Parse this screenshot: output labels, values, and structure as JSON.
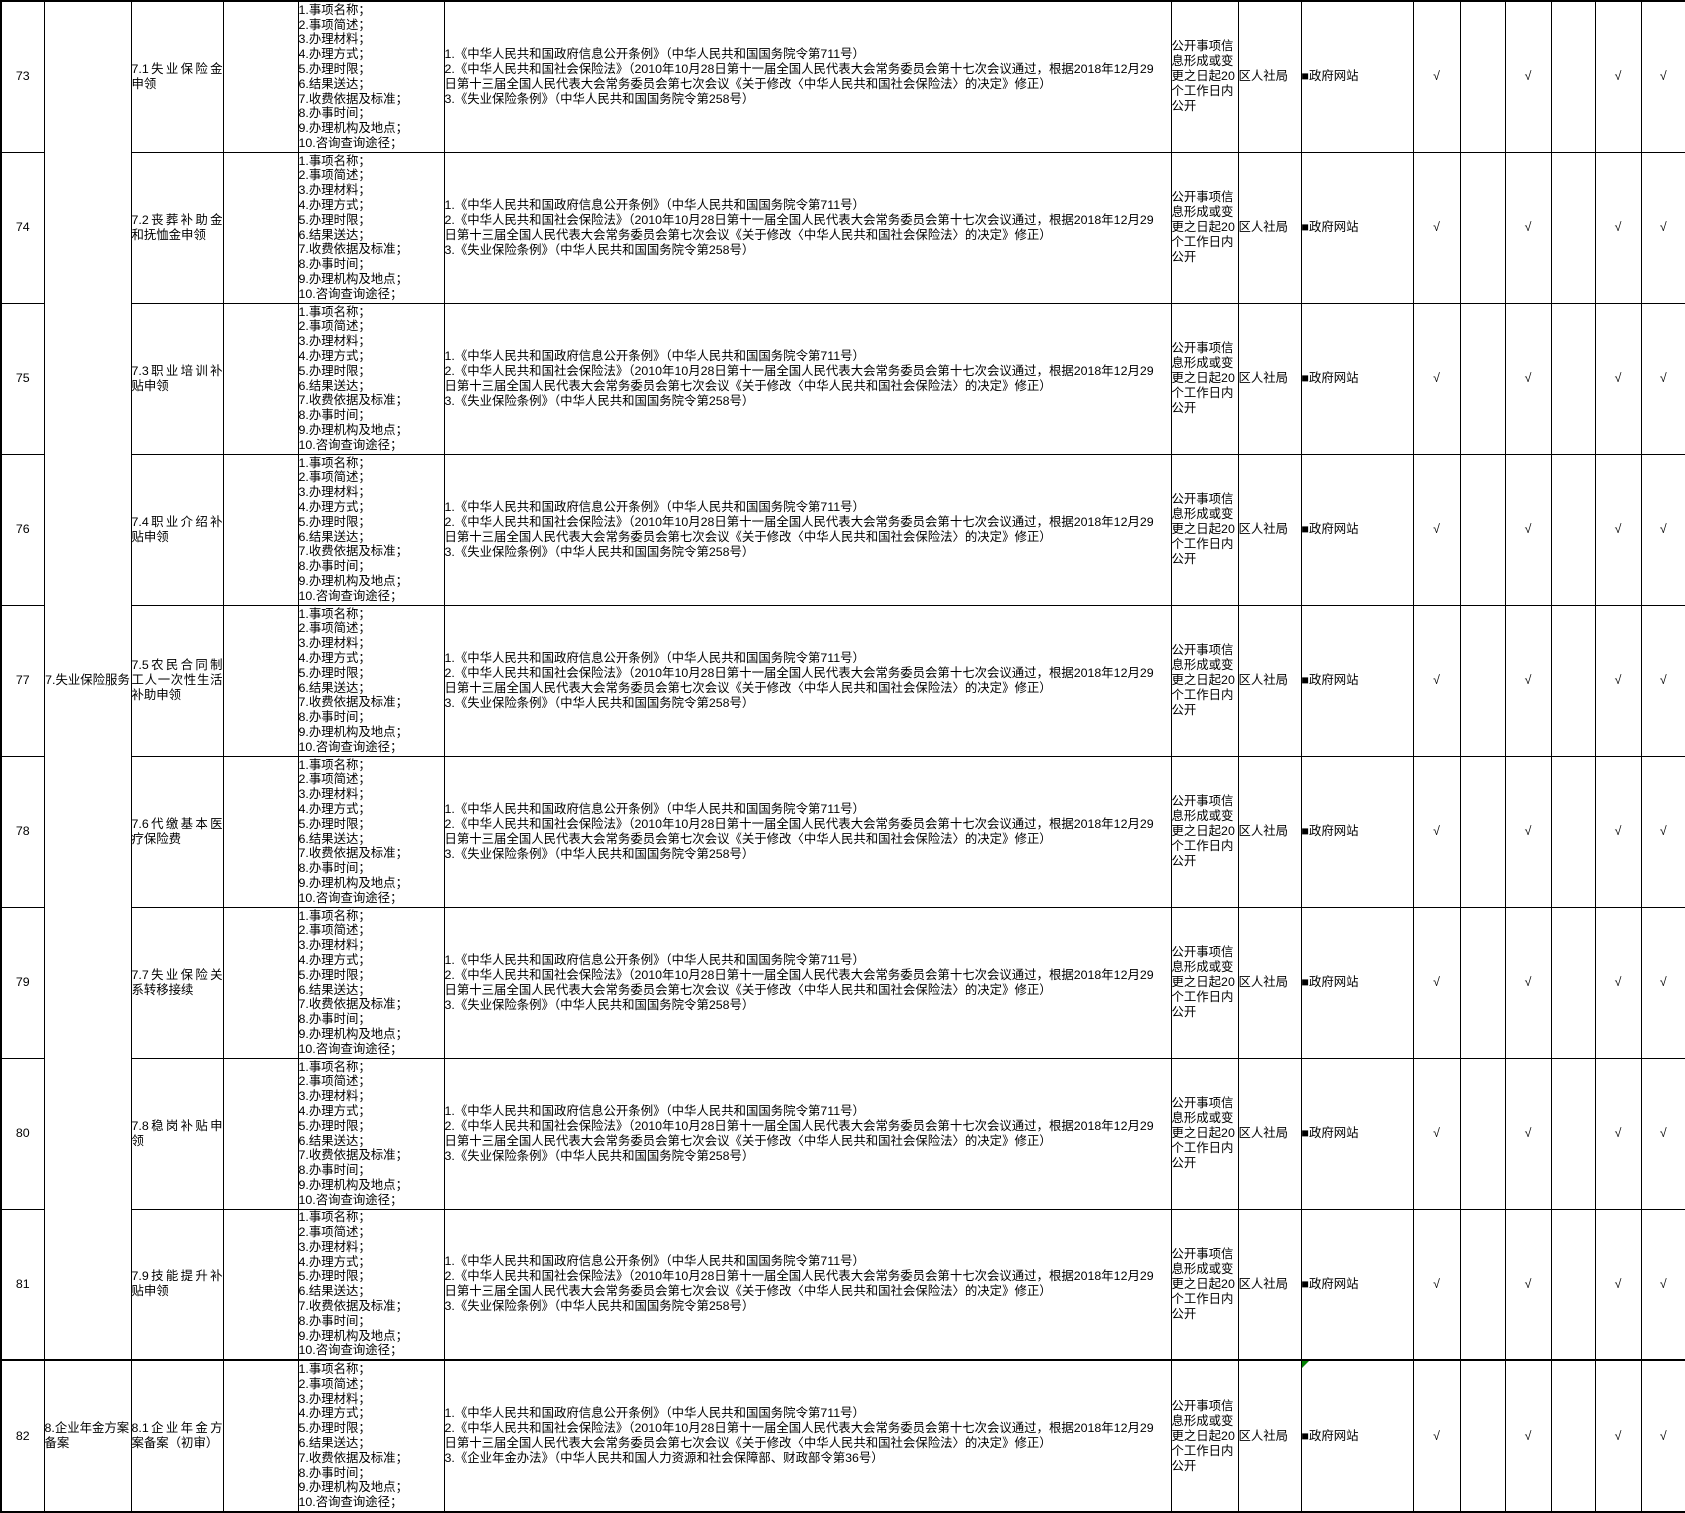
{
  "colors": {
    "smart_tag_green": "#008000",
    "border": "#000000",
    "text": "#000000",
    "background": "#ffffff"
  },
  "shared": {
    "content_items": [
      "1.事项名称；",
      "2.事项简述；",
      "3.办理材料；",
      "4.办理方式；",
      "5.办理时限；",
      "6.结果送达；",
      "7.收费依据及标准；",
      "8.办事时间；",
      "9.办理机构及地点；",
      "10.咨询查询途径；"
    ],
    "legal_basis": {
      "unemployment": [
        "1.《中华人民共和国政府信息公开条例》（中华人民共和国国务院令第711号）",
        "2.《中华人民共和国社会保险法》（2010年10月28日第十一届全国人民代表大会常务委员会第十七次会议通过，根据2018年12月29",
        "日第十三届全国人民代表大会常务委员会第七次会议《关于修改〈中华人民共和国社会保险法〉的决定》修正）",
        "3.《失业保险条例》（中华人民共和国国务院令第258号）"
      ],
      "annuity": [
        "1.《中华人民共和国政府信息公开条例》（中华人民共和国国务院令第711号）",
        "2.《中华人民共和国社会保险法》（2010年10月28日第十一届全国人民代表大会常务委员会第十七次会议通过，根据2018年12月29",
        "日第十三届全国人民代表大会常务委员会第七次会议《关于修改〈中华人民共和国社会保险法〉的决定》修正）",
        "3.《企业年金办法》（中华人民共和国人力资源和社会保障部、财政部令第36号）"
      ]
    },
    "publish_deadline_lines": [
      "公开事项信",
      "息形成或变",
      "更之日起20",
      "个工作日内",
      "公开"
    ],
    "publish_deadline_full": "公开事项信息形成或变更之日起20个工作日内公开",
    "publish_agency": "区人社局",
    "channel_bullet": "■",
    "channel_label": "政府网站",
    "checkmark": "√"
  },
  "categories": [
    {
      "label": "7.失业保险服务",
      "start_row": "73",
      "end_row": "81"
    },
    {
      "label": "8.企业年金方案备案",
      "start_row": "82",
      "end_row": "82"
    }
  ],
  "rows": [
    {
      "no": "73",
      "item": "7.1失业保险金申领",
      "legal_basis": "unemployment",
      "checks": [
        true,
        false,
        true,
        false,
        true,
        true
      ],
      "green_corner_mark": false
    },
    {
      "no": "74",
      "item": "7.2丧葬补助金和抚恤金申领",
      "legal_basis": "unemployment",
      "checks": [
        true,
        false,
        true,
        false,
        true,
        true
      ],
      "green_corner_mark": false
    },
    {
      "no": "75",
      "item": "7.3职业培训补贴申领",
      "legal_basis": "unemployment",
      "checks": [
        true,
        false,
        true,
        false,
        true,
        true
      ],
      "green_corner_mark": false
    },
    {
      "no": "76",
      "item": "7.4职业介绍补贴申领",
      "legal_basis": "unemployment",
      "checks": [
        true,
        false,
        true,
        false,
        true,
        true
      ],
      "green_corner_mark": false
    },
    {
      "no": "77",
      "item": "7.5农民合同制工人一次性生活补助申领",
      "legal_basis": "unemployment",
      "checks": [
        true,
        false,
        true,
        false,
        true,
        true
      ],
      "green_corner_mark": false
    },
    {
      "no": "78",
      "item": "7.6代缴基本医疗保险费",
      "legal_basis": "unemployment",
      "checks": [
        true,
        false,
        true,
        false,
        true,
        true
      ],
      "green_corner_mark": false
    },
    {
      "no": "79",
      "item": "7.7失业保险关系转移接续",
      "legal_basis": "unemployment",
      "checks": [
        true,
        false,
        true,
        false,
        true,
        true
      ],
      "green_corner_mark": false
    },
    {
      "no": "80",
      "item": "7.8稳岗补贴申领",
      "legal_basis": "unemployment",
      "checks": [
        true,
        false,
        true,
        false,
        true,
        true
      ],
      "green_corner_mark": false
    },
    {
      "no": "81",
      "item": "7.9技能提升补贴申领",
      "legal_basis": "unemployment",
      "checks": [
        true,
        false,
        true,
        false,
        true,
        true
      ],
      "green_corner_mark": false
    },
    {
      "no": "82",
      "item": "8.1企业年金方案备案（初审）",
      "legal_basis": "annuity",
      "checks": [
        true,
        false,
        true,
        false,
        true,
        true
      ],
      "green_corner_mark": true
    }
  ]
}
